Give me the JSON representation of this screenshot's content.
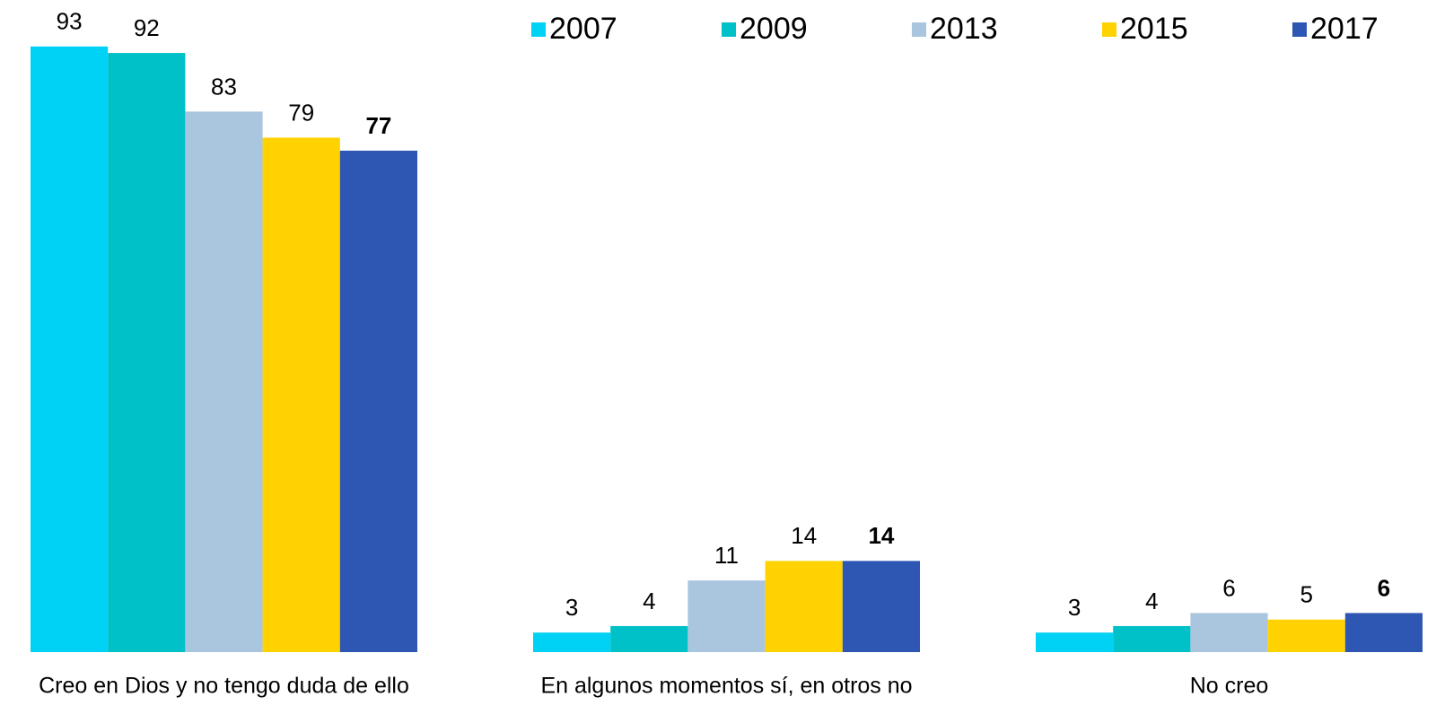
{
  "chart_data": {
    "type": "bar",
    "categories": [
      "Creo en Dios y no tengo duda de ello",
      "En algunos momentos sí, en otros no",
      "No creo"
    ],
    "series": [
      {
        "name": "2007",
        "color": "#00d2f6",
        "values": [
          93,
          3,
          3
        ]
      },
      {
        "name": "2009",
        "color": "#00c0c8",
        "values": [
          92,
          4,
          4
        ]
      },
      {
        "name": "2013",
        "color": "#a9c6de",
        "values": [
          83,
          11,
          6
        ]
      },
      {
        "name": "2015",
        "color": "#ffd200",
        "values": [
          79,
          14,
          5
        ]
      },
      {
        "name": "2017",
        "color": "#2d57b2",
        "values": [
          77,
          14,
          6
        ]
      }
    ],
    "ylim": [
      0,
      100
    ],
    "legend": "top-right"
  }
}
